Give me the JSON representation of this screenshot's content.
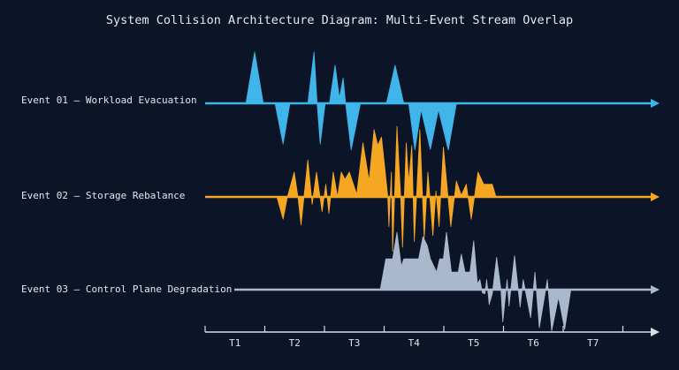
{
  "title": "System Collision Architecture Diagram: Multi-Event Stream Overlap",
  "colors": {
    "background": "#0c1428",
    "axis": "#d8dde6"
  },
  "time_axis": {
    "ticks": [
      "T1",
      "T2",
      "T3",
      "T4",
      "T5",
      "T6",
      "T7"
    ]
  },
  "events": [
    {
      "label": "Event 01 — Workload Evacuation",
      "color": "#3fb5ea",
      "line_start": 0,
      "waveform": [
        [
          0.66,
          0
        ],
        [
          0.8,
          0.97
        ],
        [
          0.94,
          0
        ],
        [
          1.13,
          0
        ],
        [
          1.26,
          -0.77
        ],
        [
          1.37,
          0
        ],
        [
          1.66,
          0
        ],
        [
          1.76,
          0.97
        ],
        [
          1.81,
          0
        ],
        [
          1.86,
          -0.77
        ],
        [
          1.94,
          0
        ],
        [
          2.01,
          0
        ],
        [
          2.1,
          0.72
        ],
        [
          2.17,
          0.1
        ],
        [
          2.23,
          0.48
        ],
        [
          2.27,
          0
        ],
        [
          2.36,
          -0.88
        ],
        [
          2.51,
          0
        ],
        [
          2.93,
          0
        ],
        [
          3.07,
          0.72
        ],
        [
          3.21,
          0
        ],
        [
          3.29,
          0
        ],
        [
          3.39,
          -0.88
        ],
        [
          3.49,
          -0.12
        ],
        [
          3.64,
          -0.87
        ],
        [
          3.77,
          -0.12
        ],
        [
          3.93,
          -0.88
        ],
        [
          4.06,
          0
        ]
      ]
    },
    {
      "label": "Event 02 — Storage Rebalance",
      "color": "#f5a623",
      "line_start": 0,
      "waveform": [
        [
          1.16,
          0
        ],
        [
          1.26,
          -0.42
        ],
        [
          1.33,
          0
        ],
        [
          1.44,
          0.47
        ],
        [
          1.5,
          0
        ],
        [
          1.55,
          -0.53
        ],
        [
          1.66,
          0.7
        ],
        [
          1.73,
          -0.14
        ],
        [
          1.8,
          0.47
        ],
        [
          1.89,
          -0.28
        ],
        [
          1.95,
          0.24
        ],
        [
          2.0,
          -0.31
        ],
        [
          2.07,
          0.47
        ],
        [
          2.14,
          0
        ],
        [
          2.2,
          0.47
        ],
        [
          2.26,
          0.33
        ],
        [
          2.33,
          0.47
        ],
        [
          2.45,
          0.05
        ],
        [
          2.55,
          1.02
        ],
        [
          2.65,
          0.3
        ],
        [
          2.73,
          1.27
        ],
        [
          2.79,
          0.97
        ],
        [
          2.85,
          1.13
        ],
        [
          2.95,
          0.03
        ],
        [
          2.97,
          -0.56
        ],
        [
          3.01,
          0.47
        ],
        [
          3.03,
          -1.03
        ],
        [
          3.1,
          1.33
        ],
        [
          3.16,
          0
        ],
        [
          3.19,
          -0.95
        ],
        [
          3.25,
          1.02
        ],
        [
          3.29,
          0.27
        ],
        [
          3.34,
          0.97
        ],
        [
          3.38,
          -0.84
        ],
        [
          3.47,
          1.27
        ],
        [
          3.54,
          -0.78
        ],
        [
          3.6,
          0.47
        ],
        [
          3.68,
          -0.73
        ],
        [
          3.73,
          0.11
        ],
        [
          3.78,
          -0.56
        ],
        [
          3.85,
          0.94
        ],
        [
          3.97,
          -0.56
        ],
        [
          4.06,
          0.3
        ],
        [
          4.14,
          0.03
        ],
        [
          4.22,
          0.24
        ],
        [
          4.3,
          -0.42
        ],
        [
          4.41,
          0.47
        ],
        [
          4.5,
          0.24
        ],
        [
          4.64,
          0.24
        ],
        [
          4.7,
          0
        ]
      ]
    },
    {
      "label": "Event 03 — Control Plane Degradation",
      "color": "#a9b8cc",
      "line_start": 0.47,
      "waveform": [
        [
          2.83,
          0
        ],
        [
          2.92,
          0.58
        ],
        [
          3.03,
          0.58
        ],
        [
          3.1,
          1.08
        ],
        [
          3.17,
          0.44
        ],
        [
          3.21,
          0.58
        ],
        [
          3.45,
          0.58
        ],
        [
          3.52,
          1.0
        ],
        [
          3.59,
          0.83
        ],
        [
          3.64,
          0.58
        ],
        [
          3.74,
          0.33
        ],
        [
          3.79,
          0.58
        ],
        [
          3.85,
          0.58
        ],
        [
          3.9,
          1.08
        ],
        [
          3.98,
          0.33
        ],
        [
          4.09,
          0.33
        ],
        [
          4.14,
          0.67
        ],
        [
          4.2,
          0.33
        ],
        [
          4.28,
          0.33
        ],
        [
          4.34,
          0.92
        ],
        [
          4.4,
          0.11
        ],
        [
          4.44,
          0.19
        ],
        [
          4.48,
          -0.06
        ],
        [
          4.52,
          -0.08
        ],
        [
          4.55,
          0.19
        ],
        [
          4.59,
          -0.28
        ],
        [
          4.64,
          -0.08
        ],
        [
          4.71,
          0.61
        ],
        [
          4.78,
          0
        ],
        [
          4.81,
          -0.61
        ],
        [
          4.88,
          0.19
        ],
        [
          4.91,
          -0.31
        ],
        [
          5.0,
          0.64
        ],
        [
          5.09,
          -0.33
        ],
        [
          5.14,
          0.19
        ],
        [
          5.26,
          -0.53
        ],
        [
          5.33,
          0.33
        ],
        [
          5.4,
          -0.72
        ],
        [
          5.53,
          0.19
        ],
        [
          5.6,
          -0.78
        ],
        [
          5.71,
          -0.14
        ],
        [
          5.81,
          -0.75
        ],
        [
          5.91,
          0
        ]
      ]
    }
  ]
}
